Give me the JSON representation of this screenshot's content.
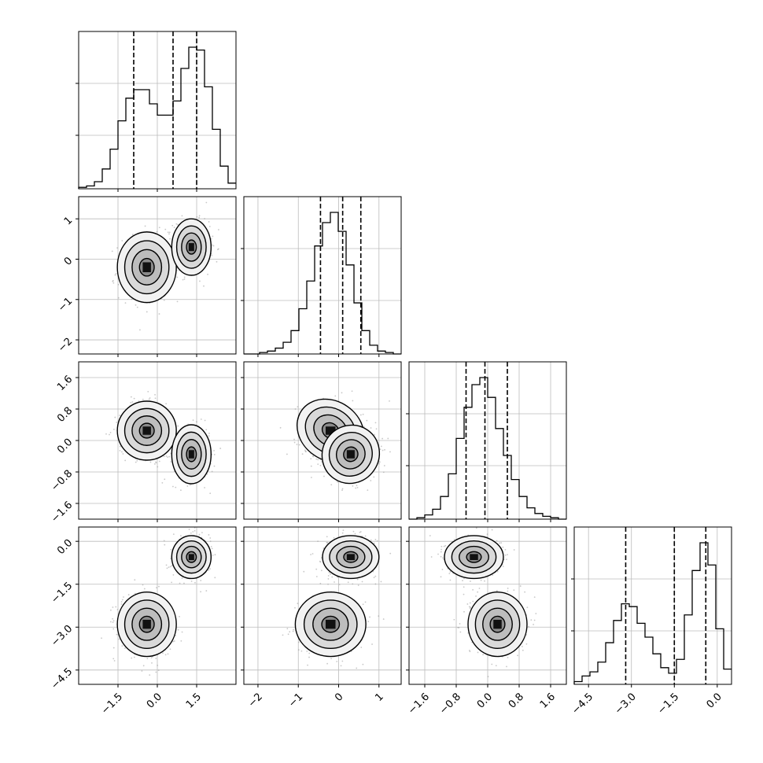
{
  "chart_data": {
    "type": "corner",
    "grid": true,
    "parameters": 4,
    "histograms": [
      {
        "param_index": 0,
        "xlim": [
          -3.0,
          3.0
        ],
        "quantiles": [
          -0.9,
          0.6,
          1.5
        ],
        "bin_start": -3.0,
        "bin_width": 0.3,
        "counts": [
          1,
          2,
          5,
          14,
          28,
          48,
          64,
          70,
          70,
          60,
          52,
          52,
          62,
          85,
          100,
          98,
          72,
          42,
          16,
          4
        ]
      },
      {
        "param_index": 1,
        "xlim": [
          -2.35,
          1.55
        ],
        "quantiles": [
          -0.45,
          0.1,
          0.55
        ],
        "bin_start": -2.35,
        "bin_width": 0.195,
        "counts": [
          0,
          0,
          1,
          2,
          4,
          8,
          16,
          31,
          50,
          74,
          90,
          97,
          84,
          61,
          35,
          16,
          6,
          2,
          1,
          0
        ]
      },
      {
        "param_index": 2,
        "xlim": [
          -2.0,
          2.0
        ],
        "quantiles": [
          -0.55,
          -0.07,
          0.5
        ],
        "bin_start": -2.0,
        "bin_width": 0.2,
        "counts": [
          0,
          1,
          3,
          7,
          16,
          32,
          57,
          79,
          95,
          100,
          86,
          64,
          45,
          28,
          16,
          8,
          4,
          2,
          1,
          0
        ]
      },
      {
        "param_index": 3,
        "xlim": [
          -5.0,
          0.5
        ],
        "quantiles": [
          -3.2,
          -1.5,
          -0.4
        ],
        "bin_start": -5.0,
        "bin_width": 0.275,
        "counts": [
          2,
          6,
          9,
          16,
          30,
          46,
          58,
          56,
          44,
          34,
          22,
          12,
          8,
          18,
          50,
          82,
          102,
          86,
          40,
          11
        ]
      }
    ],
    "x_ticks": [
      {
        "values": [
          -1.5,
          0.0,
          1.5
        ],
        "labels": [
          "−1.5",
          "0.0",
          "1.5"
        ]
      },
      {
        "values": [
          -2,
          -1,
          0,
          1
        ],
        "labels": [
          "−2",
          "−1",
          "0",
          "1"
        ]
      },
      {
        "values": [
          -1.6,
          -0.8,
          0.0,
          0.8,
          1.6
        ],
        "labels": [
          "−1.6",
          "−0.8",
          "0.0",
          "0.8",
          "1.6"
        ]
      },
      {
        "values": [
          -4.5,
          -3.0,
          -1.5,
          0.0
        ],
        "labels": [
          "−4.5",
          "−3.0",
          "−1.5",
          "0.0"
        ]
      }
    ],
    "y_ticks": [
      null,
      {
        "values": [
          1,
          0,
          -1,
          -2
        ],
        "labels": [
          "1",
          "0",
          "−1",
          "−2"
        ]
      },
      {
        "values": [
          1.6,
          0.8,
          0.0,
          -0.8,
          -1.6
        ],
        "labels": [
          "1.6",
          "0.8",
          "0.0",
          "−0.8",
          "−1.6"
        ]
      },
      {
        "values": [
          0.0,
          -1.5,
          -3.0,
          -4.5
        ],
        "labels": [
          "0.0",
          "−1.5",
          "−3.0",
          "−4.5"
        ]
      }
    ],
    "mixture_components": [
      {
        "mean": [
          -0.4,
          -0.2,
          0.25,
          -2.9
        ],
        "sd": [
          0.45,
          0.35,
          0.3,
          0.45
        ]
      },
      {
        "mean": [
          1.3,
          0.3,
          -0.35,
          -0.55
        ],
        "sd": [
          0.3,
          0.28,
          0.3,
          0.3
        ]
      }
    ],
    "contour_levels_sigma": [
      0.5,
      1.0,
      1.5,
      2.0
    ]
  }
}
